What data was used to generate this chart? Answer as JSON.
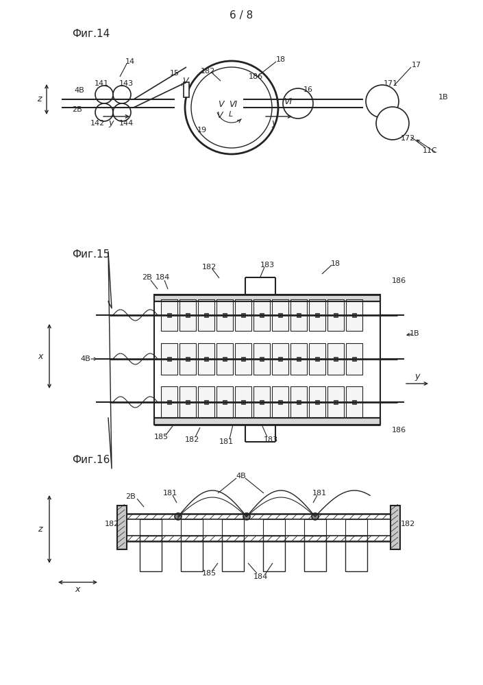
{
  "page_number": "6 / 8",
  "fig14_label": "Фиг.14",
  "fig15_label": "Фиг.15",
  "fig16_label": "Фиг.16",
  "bg_color": "#ffffff",
  "line_color": "#222222",
  "text_color": "#222222"
}
